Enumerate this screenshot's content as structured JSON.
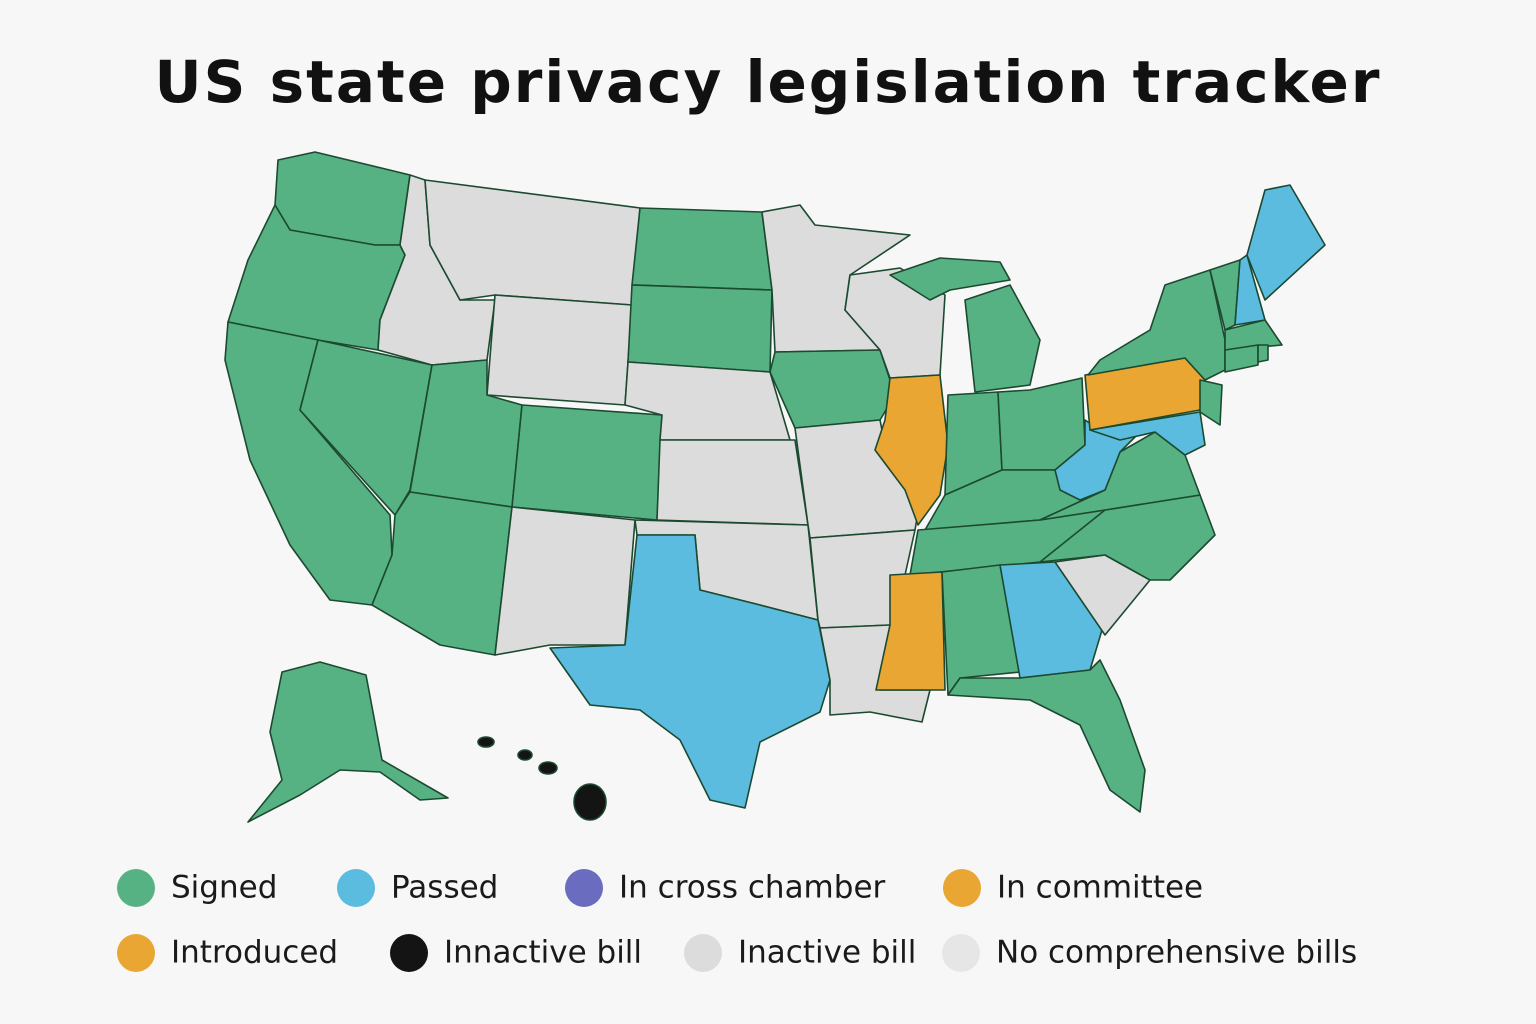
{
  "title": "US state privacy legislation tracker",
  "legend": [
    {
      "label": "Signed",
      "color": "#57b283"
    },
    {
      "label": "Passed",
      "color": "#5bbce0"
    },
    {
      "label": "In cross chamber",
      "color": "#6a6dbf"
    },
    {
      "label": "In committee",
      "color": "#e9a632"
    },
    {
      "label": "Introduced",
      "color": "#e9a632"
    },
    {
      "label": "Innactive bill",
      "color": "#141414"
    },
    {
      "label": "Inactive bill",
      "color": "#dcdcdc"
    },
    {
      "label": "No comprehensive bills",
      "color": "#e6e6e6"
    }
  ]
}
